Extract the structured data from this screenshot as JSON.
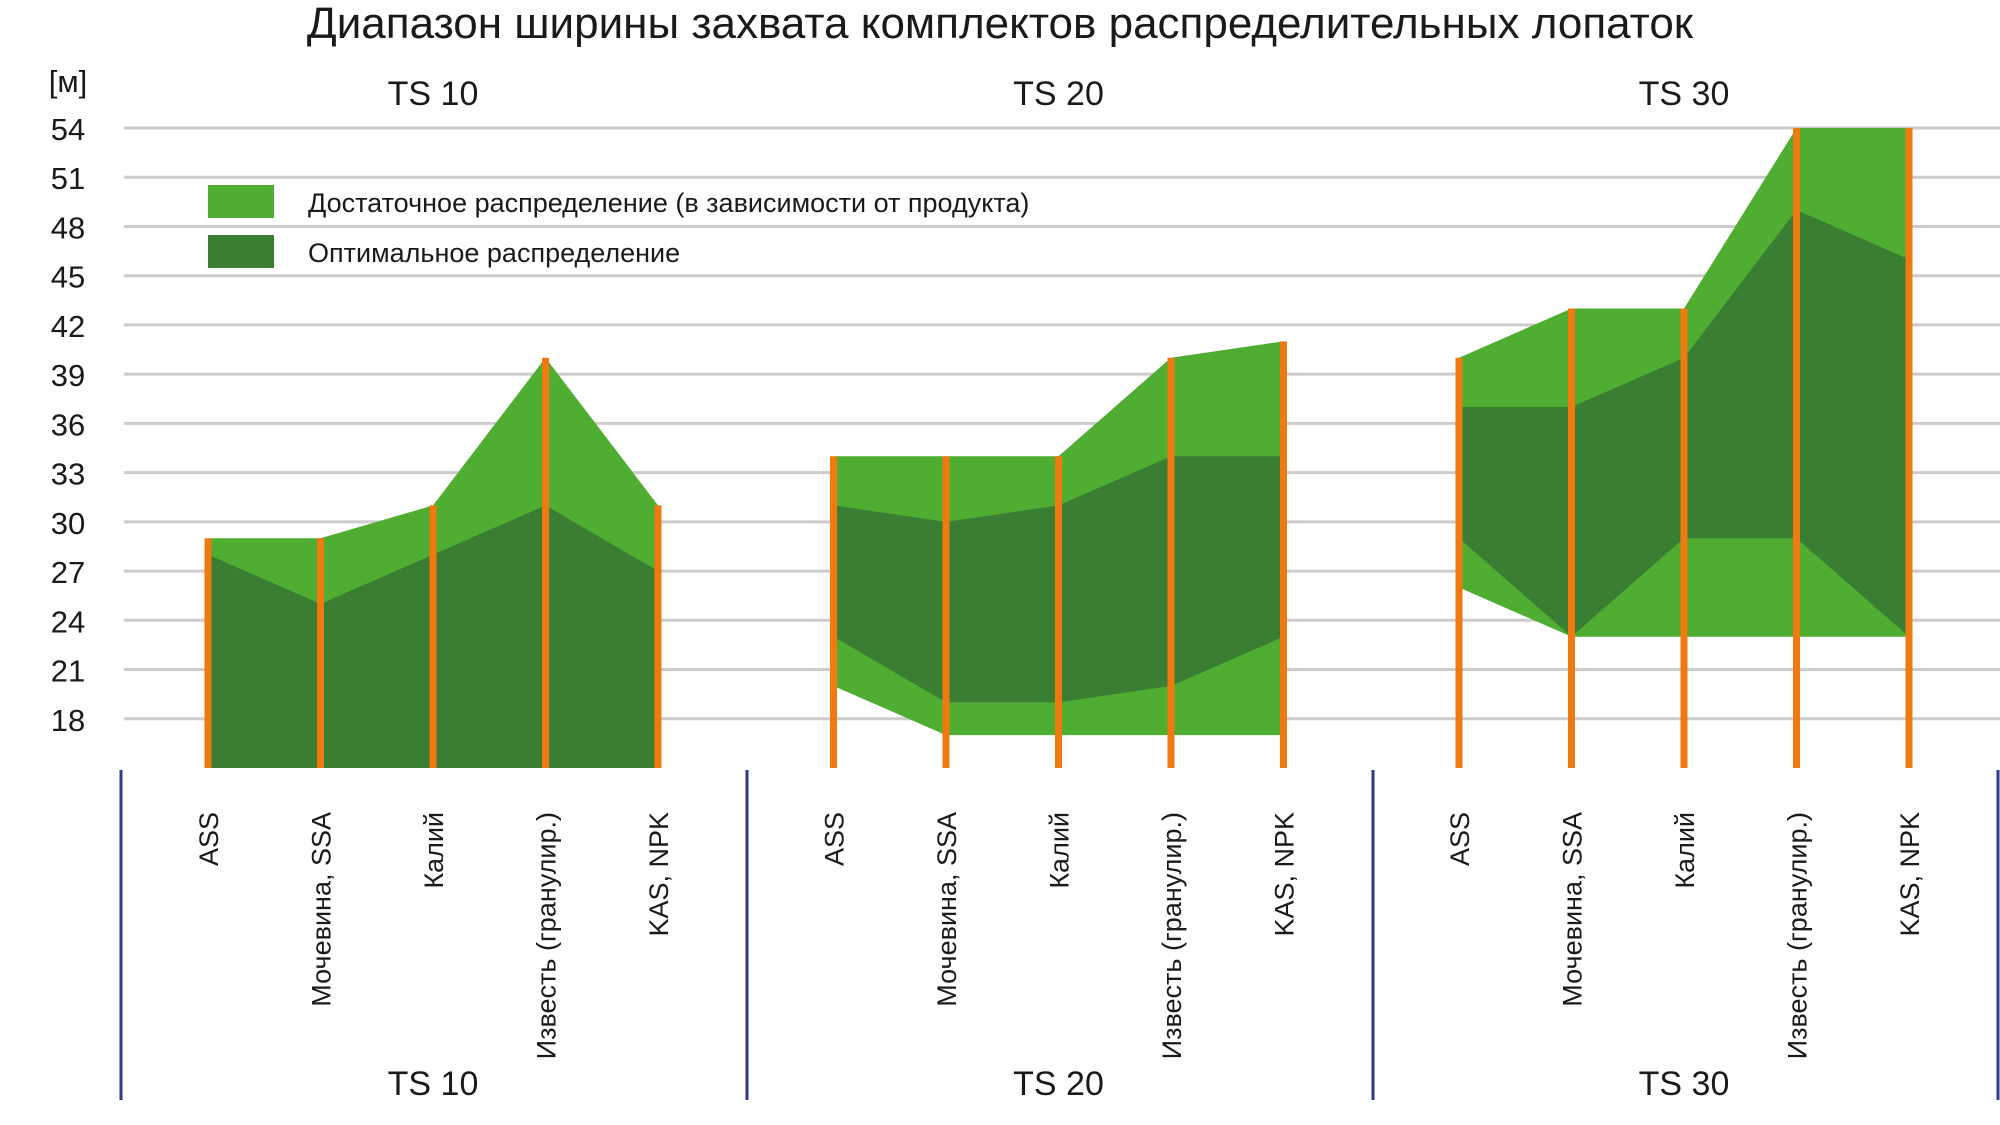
{
  "chart_data": {
    "type": "area",
    "title": "Диапазон ширины захвата комплектов распределительных лопаток",
    "ylabel": "[м]",
    "ylim": [
      15,
      54
    ],
    "yticks": [
      18,
      21,
      24,
      27,
      30,
      33,
      36,
      39,
      42,
      45,
      48,
      51,
      54
    ],
    "grid": true,
    "legend_position": "top-left",
    "legend": [
      {
        "label": "Достаточное распределение (в зависимости от продукта)",
        "color": "#4fae32"
      },
      {
        "label": "Оптимальное распределение",
        "color": "#3a7e34"
      }
    ],
    "colors": {
      "sufficient": "#4fae32",
      "optimal": "#3a7e34",
      "marker": "#f07a10",
      "divider": "#2e3a8c",
      "grid": "#cccccc"
    },
    "categories": [
      "ASS",
      "Мочевина, SSA",
      "Калий",
      "Известь (гранулир.)",
      "KAS, NPK"
    ],
    "groups": [
      {
        "name": "TS 10",
        "sufficient_min": [
          15,
          15,
          15,
          15,
          15
        ],
        "sufficient_max": [
          29,
          29,
          31,
          40,
          31
        ],
        "optimal_min": [
          15,
          15,
          15,
          15,
          15
        ],
        "optimal_max": [
          28,
          25,
          28,
          31,
          27
        ]
      },
      {
        "name": "TS 20",
        "sufficient_min": [
          20,
          17,
          17,
          17,
          17
        ],
        "sufficient_max": [
          34,
          34,
          34,
          40,
          41
        ],
        "optimal_min": [
          23,
          19,
          19,
          20,
          23
        ],
        "optimal_max": [
          31,
          30,
          31,
          34,
          34
        ]
      },
      {
        "name": "TS 30",
        "sufficient_min": [
          26,
          23,
          23,
          23,
          23
        ],
        "sufficient_max": [
          40,
          43,
          43,
          54,
          54
        ],
        "optimal_min": [
          29,
          23,
          29,
          29,
          23
        ],
        "optimal_max": [
          37,
          37,
          40,
          49,
          46
        ]
      }
    ]
  }
}
